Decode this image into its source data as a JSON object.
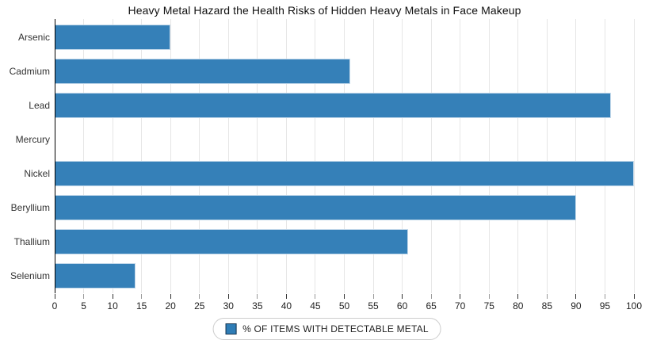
{
  "chart_data": {
    "type": "bar",
    "orientation": "horizontal",
    "title": "Heavy Metal Hazard the Health Risks of Hidden Heavy Metals in Face Makeup",
    "categories": [
      "Arsenic",
      "Cadmium",
      "Lead",
      "Mercury",
      "Nickel",
      "Beryllium",
      "Thallium",
      "Selenium"
    ],
    "values": [
      20,
      51,
      96,
      0,
      100,
      90,
      61,
      14
    ],
    "series_name": "% OF ITEMS WITH DETECTABLE METAL",
    "xlabel": "",
    "ylabel": "",
    "xlim": [
      0,
      100
    ],
    "x_ticks": [
      0,
      5,
      10,
      15,
      20,
      25,
      30,
      35,
      40,
      45,
      50,
      55,
      60,
      65,
      70,
      75,
      80,
      85,
      90,
      95,
      100
    ],
    "grid": true,
    "legend_position": "bottom",
    "colors": {
      "bar_fill": "#3580b8",
      "bar_edge": "#c2d8ea",
      "gridline": "#e6e6e6",
      "axis_line": "#000000",
      "tick_major": "#333333",
      "tick_minor": "#999999",
      "legend_swatch_fill": "#2f7db6",
      "legend_swatch_edge": "#16344f"
    }
  }
}
